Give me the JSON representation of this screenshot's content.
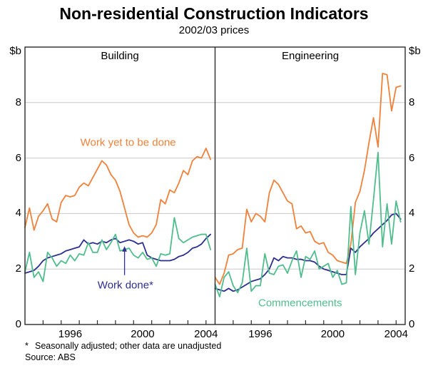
{
  "title": "Non-residential Construction Indicators",
  "subtitle": "2002/03 prices",
  "footnote_star": "*",
  "footnote_text": "Seasonally adjusted; other data are unadjusted",
  "source": "Source: ABS",
  "y_axis": {
    "unit_label": "$b",
    "tick_labels": [
      "0",
      "2",
      "4",
      "6",
      "8"
    ],
    "tick_values": [
      0,
      2,
      4,
      6,
      8
    ],
    "max": 10
  },
  "x_axis": {
    "minor_tick_years": [
      1995,
      1996,
      1997,
      1998,
      1999,
      2000,
      2001,
      2002,
      2003,
      2004
    ],
    "labels": [
      {
        "label": "1996",
        "t": 1996.5
      },
      {
        "label": "2000",
        "t": 2000.5
      },
      {
        "label": "2004",
        "t": 2004.0
      }
    ]
  },
  "colors": {
    "orange": "#F0813A",
    "navy": "#2B2F8E",
    "green": "#4FBD8C",
    "grid": "#C9C9C9",
    "frame": "#2B2B2B",
    "text": "#000000"
  },
  "chart_data": [
    {
      "type": "line",
      "title": "Building",
      "ylabel": "$b",
      "ylim": [
        0,
        10
      ],
      "xlim": [
        1994.0,
        2004.5
      ],
      "grid": "horizontal",
      "legend_position": "in-plot-labels",
      "x_start": 1994.0,
      "x_step": 0.25,
      "series": [
        {
          "name": "Work yet to be done",
          "color_key": "orange",
          "values": [
            3.5,
            4.2,
            3.4,
            3.9,
            4.1,
            4.35,
            3.8,
            3.7,
            4.4,
            4.65,
            4.6,
            4.65,
            4.95,
            5.1,
            5.0,
            5.3,
            5.6,
            5.9,
            5.75,
            5.4,
            5.2,
            4.8,
            4.2,
            3.6,
            3.3,
            3.15,
            3.2,
            3.15,
            3.3,
            3.6,
            4.5,
            4.35,
            4.85,
            4.75,
            5.1,
            5.55,
            5.4,
            5.9,
            6.05,
            6.0,
            6.35,
            5.95
          ]
        },
        {
          "name": "Work done*",
          "color_key": "navy",
          "values": [
            1.85,
            1.9,
            1.95,
            2.1,
            2.3,
            2.4,
            2.45,
            2.5,
            2.55,
            2.65,
            2.7,
            2.75,
            2.8,
            3.05,
            2.9,
            2.95,
            2.9,
            3.0,
            2.95,
            3.05,
            3.1,
            2.95,
            3.0,
            3.05,
            3.0,
            2.9,
            2.95,
            2.5,
            2.4,
            2.35,
            2.3,
            2.3,
            2.3,
            2.35,
            2.45,
            2.5,
            2.6,
            2.75,
            2.8,
            2.9,
            3.1,
            3.25
          ]
        },
        {
          "name": "Commencements",
          "color_key": "green",
          "values": [
            1.9,
            2.6,
            1.7,
            1.9,
            1.55,
            2.6,
            2.4,
            2.1,
            2.3,
            2.2,
            2.5,
            2.3,
            2.55,
            2.5,
            2.95,
            2.6,
            2.6,
            3.05,
            2.7,
            2.95,
            3.25,
            2.65,
            2.7,
            2.75,
            2.5,
            2.4,
            2.6,
            2.35,
            2.4,
            2.1,
            2.55,
            2.5,
            2.55,
            3.85,
            3.1,
            2.95,
            3.05,
            3.15,
            3.2,
            3.25,
            3.25,
            2.7
          ]
        }
      ],
      "annotations": [
        {
          "text": "Work yet to be done",
          "color_key": "orange",
          "t": 1999.7,
          "v": 6.55
        },
        {
          "text": "Work done*",
          "color_key": "navy",
          "t": 1999.55,
          "v": 1.42,
          "arrow": {
            "t": 1999.5,
            "v_from": 1.78,
            "v_to": 2.82
          }
        }
      ]
    },
    {
      "type": "line",
      "title": "Engineering",
      "ylabel": "$b",
      "ylim": [
        0,
        10
      ],
      "xlim": [
        1994.0,
        2004.5
      ],
      "grid": "horizontal",
      "legend_position": "in-plot-labels",
      "x_start": 1994.0,
      "x_step": 0.25,
      "series": [
        {
          "name": "Work yet to be done",
          "color_key": "orange",
          "values": [
            1.7,
            1.45,
            1.85,
            2.5,
            2.55,
            2.7,
            2.75,
            4.15,
            3.7,
            4.0,
            3.9,
            3.7,
            4.75,
            5.2,
            5.05,
            4.75,
            4.45,
            4.35,
            3.45,
            3.55,
            3.3,
            3.35,
            3.0,
            2.9,
            2.95,
            2.6,
            2.5,
            2.3,
            2.25,
            2.2,
            2.9,
            4.4,
            4.8,
            5.55,
            6.55,
            7.45,
            6.4,
            9.05,
            9.0,
            7.7,
            8.55,
            8.6
          ]
        },
        {
          "name": "Work done*",
          "color_key": "navy",
          "values": [
            1.3,
            1.25,
            1.2,
            1.3,
            1.2,
            1.25,
            1.35,
            1.45,
            1.55,
            1.6,
            1.65,
            1.8,
            2.0,
            2.4,
            2.3,
            2.45,
            2.4,
            2.4,
            2.35,
            2.35,
            2.3,
            2.3,
            2.25,
            2.1,
            2.0,
            1.95,
            1.9,
            1.85,
            1.8,
            1.8,
            2.75,
            2.6,
            2.8,
            2.95,
            3.1,
            3.3,
            3.45,
            3.6,
            3.75,
            3.95,
            4.0,
            3.8
          ]
        },
        {
          "name": "Commencements",
          "color_key": "green",
          "values": [
            1.45,
            1.0,
            1.7,
            1.9,
            1.4,
            1.15,
            1.5,
            2.75,
            1.2,
            1.4,
            1.4,
            2.55,
            1.85,
            1.8,
            2.1,
            2.15,
            1.85,
            2.3,
            2.65,
            1.7,
            2.45,
            2.35,
            2.65,
            2.0,
            2.1,
            2.2,
            1.7,
            1.95,
            1.45,
            1.5,
            4.25,
            1.8,
            3.3,
            4.1,
            2.9,
            4.5,
            6.2,
            2.8,
            4.35,
            2.9,
            4.45,
            3.7
          ]
        }
      ],
      "annotations": [
        {
          "text": "Commencements",
          "color_key": "green",
          "t": 1998.7,
          "v": 0.78
        }
      ]
    }
  ]
}
